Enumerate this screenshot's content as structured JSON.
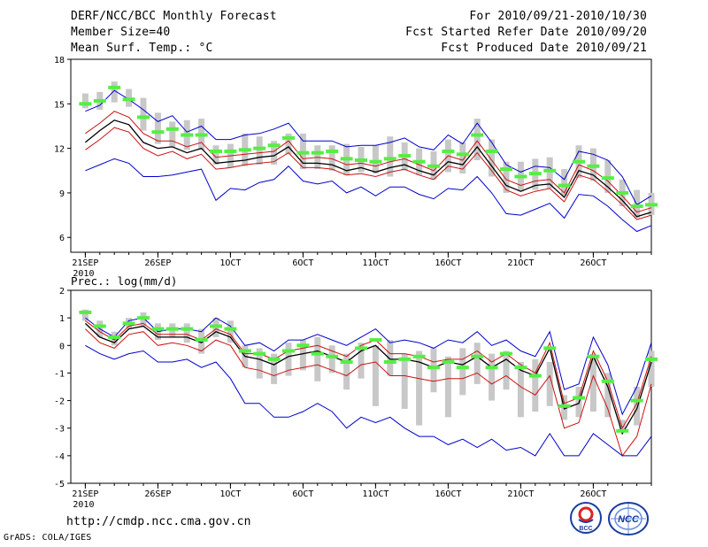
{
  "header": {
    "title": "DERF/NCC/BCC Monthly Forecast",
    "member_size": "Member Size=40",
    "variable": "Mean Surf. Temp.: °C",
    "period": "For 2010/09/21-2010/10/30",
    "refer_date": "Fcst Started Refer Date 2010/09/20",
    "produced_date": "Fcst Produced Date 2010/09/21"
  },
  "footer": {
    "url": "http://cmdp.ncc.cma.gov.cn",
    "grads": "GrADS: COLA/IGES",
    "logo_bcc": "BCC",
    "logo_ncc": "NCC"
  },
  "colors": {
    "box": "#c8c8c8",
    "median": "#55ee44",
    "ensemble_mean": "#000000",
    "spread": "#cc1111",
    "envelope": "#0000cc"
  },
  "chart_data": [
    {
      "type": "line",
      "title": "Mean Surf. Temp.: °C",
      "ylim": [
        5,
        18
      ],
      "yticks": [
        6,
        9,
        12,
        15,
        18
      ],
      "xlim": [
        0,
        40
      ],
      "x_ticks": [
        {
          "day": 1,
          "label": "21SEP"
        },
        {
          "day": 6,
          "label": "26SEP"
        },
        {
          "day": 11,
          "label": "1OCT"
        },
        {
          "day": 16,
          "label": "6OCT"
        },
        {
          "day": 21,
          "label": "11OCT"
        },
        {
          "day": 26,
          "label": "16OCT"
        },
        {
          "day": 31,
          "label": "21OCT"
        },
        {
          "day": 36,
          "label": "26OCT"
        }
      ],
      "year_label": "2010",
      "x": [
        1,
        2,
        3,
        4,
        5,
        6,
        7,
        8,
        9,
        10,
        11,
        12,
        13,
        14,
        15,
        16,
        17,
        18,
        19,
        20,
        21,
        22,
        23,
        24,
        25,
        26,
        27,
        28,
        29,
        30,
        31,
        32,
        33,
        34,
        35,
        36,
        37,
        38,
        39,
        40
      ],
      "box_low": [
        14.7,
        14.6,
        15.1,
        14.8,
        13.2,
        12.3,
        12.1,
        11.9,
        11.9,
        10.9,
        10.7,
        10.8,
        10.9,
        10.9,
        11.6,
        10.6,
        10.6,
        10.5,
        10.2,
        10.4,
        10.3,
        10.1,
        10.5,
        10.2,
        9.9,
        10.4,
        10.3,
        11.2,
        10.1,
        9.0,
        9.1,
        9.2,
        9.3,
        8.8,
        10.0,
        9.8,
        9.0,
        8.1,
        7.3,
        7.5
      ],
      "box_high": [
        15.7,
        15.8,
        16.5,
        16.0,
        15.4,
        14.4,
        13.8,
        13.9,
        14.0,
        12.2,
        12.3,
        13.0,
        12.8,
        12.5,
        13.0,
        13.0,
        12.2,
        12.2,
        12.3,
        12.1,
        12.2,
        12.8,
        12.4,
        12.0,
        11.8,
        12.6,
        12.4,
        14.0,
        12.6,
        11.1,
        11.1,
        11.3,
        11.4,
        10.6,
        12.2,
        12.0,
        11.2,
        9.9,
        9.2,
        9.0
      ],
      "median": [
        15.0,
        15.2,
        16.1,
        15.3,
        14.1,
        13.1,
        13.3,
        12.9,
        12.9,
        11.8,
        11.8,
        11.9,
        12.0,
        12.2,
        12.7,
        11.7,
        11.7,
        11.8,
        11.3,
        11.2,
        11.1,
        11.3,
        11.5,
        11.1,
        10.8,
        11.8,
        11.6,
        12.9,
        11.8,
        10.6,
        10.1,
        10.3,
        10.5,
        9.5,
        11.1,
        10.8,
        10.0,
        9.0,
        8.1,
        8.2
      ],
      "series": [
        {
          "name": "max",
          "color": "envelope",
          "values": [
            14.5,
            14.9,
            15.9,
            15.3,
            14.6,
            13.8,
            14.2,
            13.1,
            13.5,
            12.6,
            12.6,
            12.9,
            13.0,
            13.3,
            13.7,
            12.5,
            12.5,
            12.5,
            12.1,
            12.2,
            12.2,
            12.4,
            12.7,
            12.1,
            11.9,
            12.9,
            12.3,
            13.7,
            12.4,
            10.9,
            10.4,
            10.8,
            10.7,
            9.9,
            11.8,
            11.6,
            11.2,
            10.1,
            8.2,
            8.8
          ]
        },
        {
          "name": "upper",
          "color": "spread",
          "values": [
            13.0,
            13.7,
            14.5,
            14.1,
            13.0,
            12.5,
            12.5,
            12.1,
            12.4,
            11.4,
            11.5,
            11.6,
            11.7,
            11.8,
            12.5,
            11.3,
            11.4,
            11.3,
            10.9,
            11.0,
            10.8,
            11.1,
            11.3,
            10.9,
            10.5,
            11.5,
            11.2,
            12.5,
            11.2,
            9.9,
            9.5,
            9.8,
            9.9,
            9.0,
            10.9,
            10.5,
            9.8,
            8.8,
            7.7,
            8.0
          ]
        },
        {
          "name": "mean",
          "color": "ensemble_mean",
          "values": [
            12.4,
            13.2,
            13.9,
            13.6,
            12.4,
            12.0,
            12.1,
            11.7,
            12.0,
            11.0,
            11.1,
            11.2,
            11.4,
            11.5,
            12.1,
            11.0,
            11.0,
            10.9,
            10.5,
            10.7,
            10.4,
            10.7,
            10.9,
            10.5,
            10.2,
            11.1,
            10.9,
            12.1,
            10.8,
            9.5,
            9.1,
            9.5,
            9.6,
            8.7,
            10.5,
            10.2,
            9.4,
            8.5,
            7.4,
            7.7
          ]
        },
        {
          "name": "lower",
          "color": "spread",
          "values": [
            11.9,
            12.6,
            13.4,
            13.1,
            12.0,
            11.5,
            11.8,
            11.3,
            11.6,
            10.6,
            10.7,
            10.9,
            11.0,
            11.1,
            11.7,
            10.7,
            10.7,
            10.6,
            10.2,
            10.3,
            10.1,
            10.4,
            10.6,
            10.2,
            9.9,
            10.8,
            10.6,
            11.7,
            10.5,
            9.2,
            8.8,
            9.1,
            9.3,
            8.4,
            10.2,
            9.9,
            9.1,
            8.2,
            7.2,
            7.5
          ]
        },
        {
          "name": "min",
          "color": "envelope",
          "values": [
            10.5,
            10.9,
            11.3,
            11.0,
            10.1,
            10.1,
            10.2,
            10.4,
            10.6,
            8.5,
            9.3,
            9.2,
            9.7,
            9.9,
            10.8,
            9.8,
            9.6,
            9.8,
            9.0,
            9.4,
            8.8,
            9.4,
            9.4,
            8.9,
            8.6,
            9.3,
            9.2,
            10.1,
            9.0,
            7.6,
            7.5,
            7.9,
            8.3,
            7.3,
            8.9,
            8.8,
            8.1,
            7.2,
            6.4,
            6.8
          ]
        }
      ]
    },
    {
      "type": "line",
      "title": "Prec.: log(mm/d)",
      "ylim": [
        -5,
        2
      ],
      "yticks": [
        -5,
        -4,
        -3,
        -2,
        -1,
        0,
        1,
        2
      ],
      "xlim": [
        0,
        40
      ],
      "x_ticks": [
        {
          "day": 1,
          "label": "21SEP"
        },
        {
          "day": 6,
          "label": "26SEP"
        },
        {
          "day": 11,
          "label": "1OCT"
        },
        {
          "day": 16,
          "label": "6OCT"
        },
        {
          "day": 21,
          "label": "11OCT"
        },
        {
          "day": 26,
          "label": "16OCT"
        },
        {
          "day": 31,
          "label": "21OCT"
        },
        {
          "day": 36,
          "label": "26OCT"
        }
      ],
      "year_label": "2010",
      "x": [
        1,
        2,
        3,
        4,
        5,
        6,
        7,
        8,
        9,
        10,
        11,
        12,
        13,
        14,
        15,
        16,
        17,
        18,
        19,
        20,
        21,
        22,
        23,
        24,
        25,
        26,
        27,
        28,
        29,
        30,
        31,
        32,
        33,
        34,
        35,
        36,
        37,
        38,
        39,
        40
      ],
      "box_low": [
        0.9,
        0.3,
        0.0,
        0.6,
        0.7,
        0.2,
        0.3,
        0.1,
        -0.3,
        0.3,
        0.1,
        -0.8,
        -1.2,
        -1.4,
        -1.1,
        -0.9,
        -1.3,
        -1.0,
        -1.6,
        -1.2,
        -2.2,
        -1.1,
        -2.3,
        -2.9,
        -1.7,
        -2.6,
        -1.8,
        -1.4,
        -2.0,
        -1.6,
        -2.6,
        -2.4,
        -2.2,
        -2.7,
        -2.6,
        -2.4,
        -2.6,
        -3.1,
        -2.9,
        -1.5
      ],
      "box_high": [
        1.3,
        0.9,
        0.5,
        1.0,
        1.2,
        0.8,
        0.8,
        0.8,
        0.6,
        1.0,
        0.9,
        0.0,
        -0.1,
        -0.3,
        0.1,
        0.2,
        0.3,
        0.0,
        -0.3,
        0.1,
        0.0,
        0.2,
        -0.3,
        -0.2,
        -0.1,
        -0.4,
        -0.1,
        0.1,
        -0.3,
        -0.2,
        -0.6,
        -0.5,
        -0.6,
        -1.8,
        -1.5,
        -0.3,
        -1.0,
        -2.7,
        -1.5,
        -0.2
      ],
      "median": [
        1.2,
        0.7,
        0.3,
        0.8,
        1.0,
        0.6,
        0.6,
        0.6,
        0.2,
        0.7,
        0.6,
        -0.2,
        -0.3,
        -0.5,
        -0.2,
        0.0,
        -0.3,
        -0.4,
        -0.6,
        -0.1,
        0.2,
        -0.6,
        -0.5,
        -0.4,
        -0.8,
        -0.6,
        -0.8,
        -0.4,
        -0.8,
        -0.3,
        -0.8,
        -1.1,
        -0.1,
        -2.2,
        -1.9,
        -0.4,
        -1.3,
        -3.1,
        -2.0,
        -0.5
      ],
      "series": [
        {
          "name": "max",
          "color": "envelope",
          "values": [
            1.0,
            0.6,
            0.3,
            0.9,
            1.0,
            0.5,
            0.6,
            0.6,
            0.5,
            1.0,
            0.7,
            0.0,
            0.1,
            -0.2,
            0.2,
            0.2,
            0.4,
            0.2,
            0.0,
            0.3,
            0.6,
            0.1,
            0.2,
            0.1,
            -0.1,
            0.2,
            0.1,
            0.5,
            0.0,
            0.2,
            -0.2,
            -0.4,
            0.5,
            -1.6,
            -1.4,
            0.3,
            -0.7,
            -2.5,
            -1.5,
            0.1
          ]
        },
        {
          "name": "upper",
          "color": "spread",
          "values": [
            0.9,
            0.5,
            0.2,
            0.7,
            0.8,
            0.4,
            0.4,
            0.4,
            0.2,
            0.6,
            0.4,
            -0.3,
            -0.3,
            -0.5,
            -0.2,
            -0.1,
            0.0,
            -0.2,
            -0.4,
            0.0,
            0.2,
            -0.3,
            -0.3,
            -0.4,
            -0.6,
            -0.5,
            -0.5,
            -0.2,
            -0.6,
            -0.3,
            -0.7,
            -1.0,
            0.1,
            -2.1,
            -1.9,
            -0.2,
            -1.3,
            -3.0,
            -2.1,
            -0.4
          ]
        },
        {
          "name": "mean",
          "color": "ensemble_mean",
          "values": [
            0.8,
            0.3,
            0.1,
            0.6,
            0.7,
            0.3,
            0.3,
            0.3,
            0.1,
            0.5,
            0.3,
            -0.4,
            -0.5,
            -0.7,
            -0.4,
            -0.3,
            -0.2,
            -0.4,
            -0.6,
            -0.2,
            0.0,
            -0.5,
            -0.5,
            -0.6,
            -0.8,
            -0.6,
            -0.7,
            -0.4,
            -0.8,
            -0.5,
            -0.9,
            -1.1,
            -0.1,
            -2.3,
            -2.1,
            -0.4,
            -1.5,
            -3.2,
            -2.3,
            -0.6
          ]
        },
        {
          "name": "lower",
          "color": "spread",
          "values": [
            0.6,
            0.1,
            -0.1,
            0.4,
            0.5,
            0.0,
            0.1,
            0.0,
            -0.2,
            0.2,
            0.0,
            -0.8,
            -0.9,
            -1.1,
            -0.9,
            -0.8,
            -0.7,
            -0.9,
            -1.1,
            -0.7,
            -0.6,
            -1.1,
            -1.1,
            -1.2,
            -1.3,
            -1.2,
            -1.2,
            -1.0,
            -1.4,
            -1.1,
            -1.5,
            -1.8,
            -1.1,
            -3.0,
            -2.8,
            -1.1,
            -2.3,
            -4.0,
            -3.3,
            -1.4
          ]
        },
        {
          "name": "min",
          "color": "envelope",
          "values": [
            0.0,
            -0.3,
            -0.5,
            -0.3,
            -0.2,
            -0.6,
            -0.6,
            -0.5,
            -0.8,
            -0.6,
            -1.2,
            -2.1,
            -2.1,
            -2.6,
            -2.6,
            -2.4,
            -2.1,
            -2.4,
            -3.0,
            -2.6,
            -2.8,
            -2.6,
            -3.0,
            -3.3,
            -3.3,
            -3.6,
            -3.4,
            -3.7,
            -3.4,
            -3.8,
            -3.7,
            -4.0,
            -3.2,
            -4.0,
            -4.0,
            -3.2,
            -3.6,
            -4.0,
            -4.0,
            -3.3
          ]
        }
      ]
    }
  ]
}
